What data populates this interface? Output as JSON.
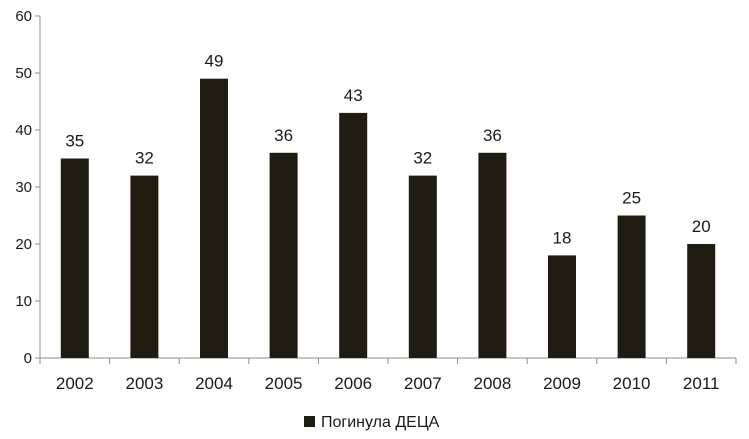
{
  "chart_data": {
    "type": "bar",
    "categories": [
      "2002",
      "2003",
      "2004",
      "2005",
      "2006",
      "2007",
      "2008",
      "2009",
      "2010",
      "2011"
    ],
    "series": [
      {
        "name": "Погинула ДЕЦА",
        "values": [
          35,
          32,
          49,
          36,
          43,
          32,
          36,
          18,
          25,
          20
        ]
      }
    ],
    "ylim": [
      0,
      60
    ],
    "yticks": [
      0,
      10,
      20,
      30,
      40,
      50,
      60
    ],
    "grid": false,
    "legend_position": "bottom-center",
    "bar_color": "#1f1c12",
    "data_labels": true
  }
}
